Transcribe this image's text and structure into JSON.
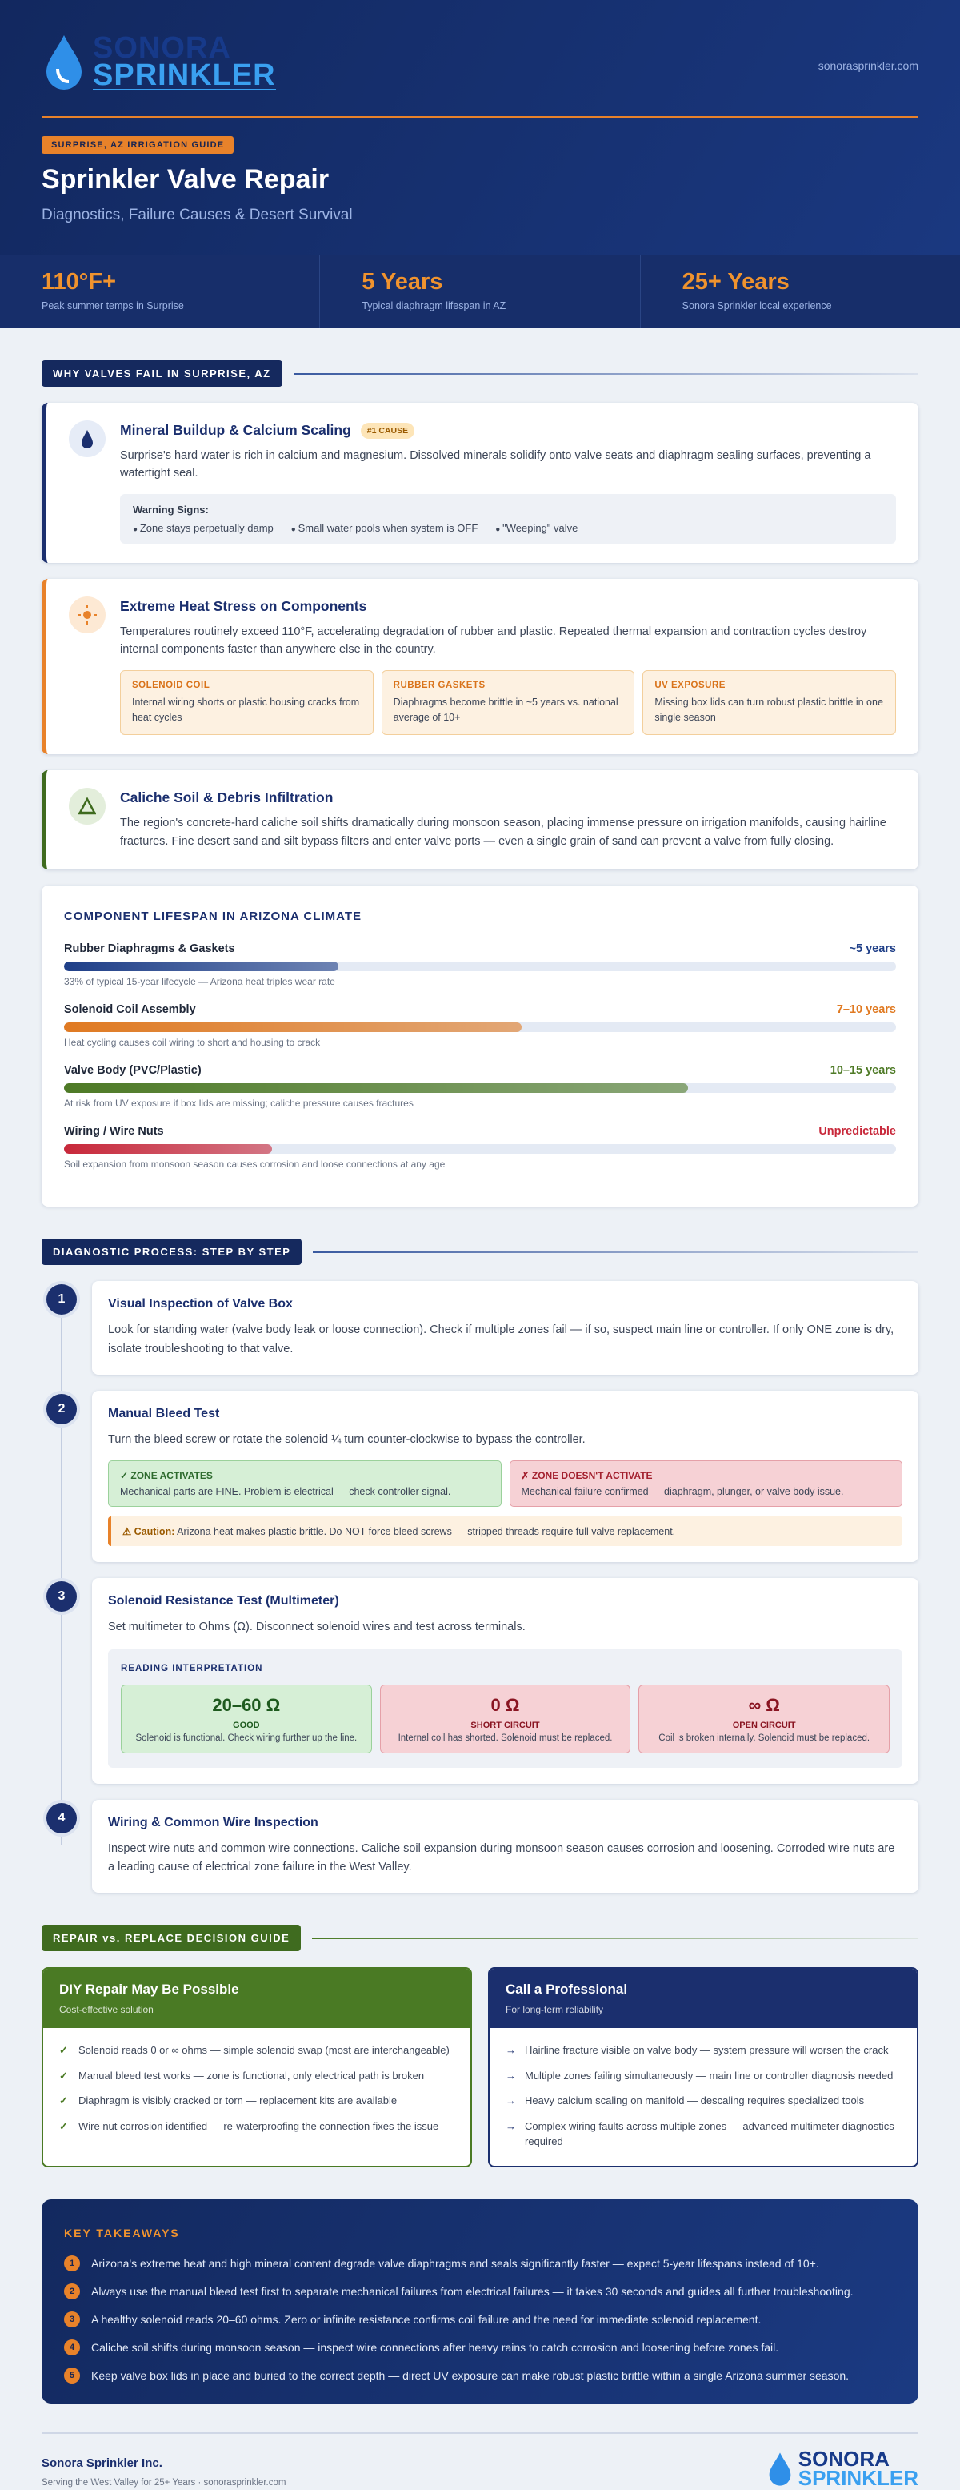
{
  "header": {
    "brand_top": "SONORA",
    "brand_bottom": "SPRINKLER",
    "website": "sonorasprinkler.com",
    "badge": "SURPRISE, AZ IRRIGATION GUIDE",
    "title": "Sprinkler Valve Repair",
    "subtitle": "Diagnostics, Failure Causes & Desert Survival"
  },
  "stats": [
    {
      "value": "110°F+",
      "label": "Peak summer temps in Surprise"
    },
    {
      "value": "5 Years",
      "label": "Typical diaphragm lifespan in AZ"
    },
    {
      "value": "25+ Years",
      "label": "Sonora Sprinkler local experience"
    }
  ],
  "failures": {
    "heading": "WHY VALVES FAIL IN SURPRISE, AZ",
    "items": [
      {
        "title": "Mineral Buildup & Calcium Scaling",
        "tag": "#1 CAUSE",
        "color": "#1b2f6e",
        "text": "Surprise's hard water is rich in calcium and magnesium. Dissolved minerals solidify onto valve seats and diaphragm sealing surfaces, preventing a watertight seal.",
        "warning_title": "Warning Signs:",
        "warnings": [
          "Zone stays perpetually damp",
          "Small water pools when system is OFF",
          "\"Weeping\" valve"
        ]
      },
      {
        "title": "Extreme Heat Stress on Components",
        "color": "#e8822a",
        "text": "Temperatures routinely exceed 110°F, accelerating degradation of rubber and plastic. Repeated thermal expansion and contraction cycles destroy internal components faster than anywhere else in the country.",
        "boxes": [
          {
            "title": "SOLENOID COIL",
            "text": "Internal wiring shorts or plastic housing cracks from heat cycles"
          },
          {
            "title": "RUBBER GASKETS",
            "text": "Diaphragms become brittle in ~5 years vs. national average of 10+"
          },
          {
            "title": "UV EXPOSURE",
            "text": "Missing box lids can turn robust plastic brittle in one single season"
          }
        ]
      },
      {
        "title": "Caliche Soil & Debris Infiltration",
        "color": "#3f6b1f",
        "text": "The region's concrete-hard caliche soil shifts dramatically during monsoon season, placing immense pressure on irrigation manifolds, causing hairline fractures. Fine desert sand and silt bypass filters and enter valve ports — even a single grain of sand can prevent a valve from fully closing."
      }
    ]
  },
  "lifespan": {
    "heading": "COMPONENT LIFESPAN IN ARIZONA CLIMATE",
    "max": 100,
    "items": [
      {
        "name": "Rubber Diaphragms & Gaskets",
        "value": "~5 years",
        "note": "33% of typical 15-year lifecycle — Arizona heat triples wear rate",
        "fill": 33,
        "color": "#1f3f88"
      },
      {
        "name": "Solenoid Coil Assembly",
        "value": "7–10 years",
        "note": "Heat cycling causes coil wiring to short and housing to crack",
        "fill": 55,
        "color": "#e07a22"
      },
      {
        "name": "Valve Body (PVC/Plastic)",
        "value": "10–15 years",
        "note": "At risk from UV exposure if box lids are missing; caliche pressure causes fractures",
        "fill": 75,
        "color": "#4e7a26"
      },
      {
        "name": "Wiring / Wire Nuts",
        "value": "Unpredictable",
        "note": "Soil expansion from monsoon season causes corrosion and loose connections at any age",
        "fill": 25,
        "color": "#c8283a"
      }
    ]
  },
  "diagnostics": {
    "heading": "DIAGNOSTIC PROCESS: STEP BY STEP",
    "steps": [
      {
        "number": 1,
        "title": "Visual Inspection of Valve Box",
        "text": "Look for standing water (valve body leak or loose connection). Check if multiple zones fail — if so, suspect main line or controller. If only ONE zone is dry, isolate troubleshooting to that valve."
      },
      {
        "number": 2,
        "title": "Manual Bleed Test",
        "text": "Turn the bleed screw or rotate the solenoid ¼ turn counter-clockwise to bypass the controller.",
        "outcomes": [
          {
            "title": "✓ ZONE ACTIVATES",
            "text": "Mechanical parts are FINE. Problem is electrical — check controller signal."
          },
          {
            "title": "✗ ZONE DOESN'T ACTIVATE",
            "text": "Mechanical failure confirmed — diaphragm, plunger, or valve body issue."
          }
        ],
        "caution_label": "⚠ Caution:",
        "caution": "Arizona heat makes plastic brittle. Do NOT force bleed screws — stripped threads require full valve replacement."
      },
      {
        "number": 3,
        "title": "Solenoid Resistance Test (Multimeter)",
        "text": "Set multimeter to Ohms (Ω). Disconnect solenoid wires and test across terminals.",
        "readings_title": "READING INTERPRETATION",
        "readings": [
          {
            "value": "20–60 Ω",
            "label": "GOOD",
            "text": "Solenoid is functional. Check wiring further up the line."
          },
          {
            "value": "0 Ω",
            "label": "SHORT CIRCUIT",
            "text": "Internal coil has shorted. Solenoid must be replaced."
          },
          {
            "value": "∞ Ω",
            "label": "OPEN CIRCUIT",
            "text": "Coil is broken internally. Solenoid must be replaced."
          }
        ]
      },
      {
        "number": 4,
        "title": "Wiring & Common Wire Inspection",
        "text": "Inspect wire nuts and common wire connections. Caliche soil expansion during monsoon season causes corrosion and loosening. Corroded wire nuts are a leading cause of electrical zone failure in the West Valley."
      }
    ]
  },
  "decision": {
    "heading": "REPAIR vs. REPLACE DECISION GUIDE",
    "diy": {
      "title": "DIY Repair May Be Possible",
      "subtitle": "Cost-effective solution",
      "items": [
        "Solenoid reads 0 or ∞ ohms — simple solenoid swap (most are interchangeable)",
        "Manual bleed test works — zone is functional, only electrical path is broken",
        "Diaphragm is visibly cracked or torn — replacement kits are available",
        "Wire nut corrosion identified — re-waterproofing the connection fixes the issue"
      ]
    },
    "pro": {
      "title": "Call a Professional",
      "subtitle": "For long-term reliability",
      "items": [
        "Hairline fracture visible on valve body — system pressure will worsen the crack",
        "Multiple zones failing simultaneously — main line or controller diagnosis needed",
        "Heavy calcium scaling on manifold — descaling requires specialized tools",
        "Complex wiring faults across multiple zones — advanced multimeter diagnostics required"
      ]
    }
  },
  "takeaways": {
    "heading": "KEY TAKEAWAYS",
    "items": [
      {
        "number": 1,
        "text": "Arizona's extreme heat and high mineral content degrade valve diaphragms and seals significantly faster — expect 5-year lifespans instead of 10+."
      },
      {
        "number": 2,
        "text": "Always use the manual bleed test first to separate mechanical failures from electrical failures — it takes 30 seconds and guides all further troubleshooting."
      },
      {
        "number": 3,
        "text": "A healthy solenoid reads 20–60 ohms. Zero or infinite resistance confirms coil failure and the need for immediate solenoid replacement."
      },
      {
        "number": 4,
        "text": "Caliche soil shifts during monsoon season — inspect wire connections after heavy rains to catch corrosion and loosening before zones fail."
      },
      {
        "number": 5,
        "text": "Keep valve box lids in place and buried to the correct depth — direct UV exposure can make robust plastic brittle within a single Arizona summer season."
      }
    ]
  },
  "footer": {
    "company": "Sonora Sprinkler Inc.",
    "tagline": "Serving the West Valley for 25+ Years · sonorasprinkler.com"
  }
}
